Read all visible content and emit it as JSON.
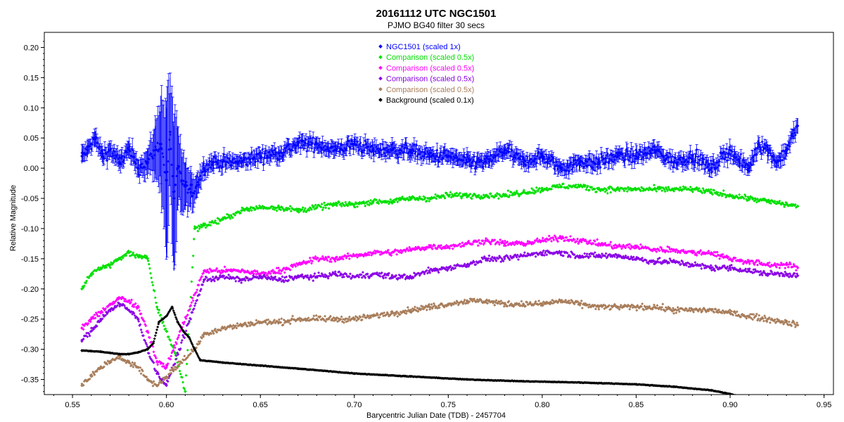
{
  "chart_data": {
    "type": "scatter",
    "title": "20161112 UTC  NGC1501",
    "subtitle": "PJMO    BG40 filter    30 secs",
    "xlabel": "Barycentric Julian Date (TDB) - 2457704",
    "ylabel": "Relative Magnitude",
    "xlim": [
      0.535,
      0.955
    ],
    "ylim": [
      -0.375,
      0.225
    ],
    "x_ticks": [
      0.55,
      0.6,
      0.65,
      0.7,
      0.75,
      0.8,
      0.85,
      0.9,
      0.95
    ],
    "x_tick_labels": [
      "0.55",
      "0.60",
      "0.65",
      "0.70",
      "0.75",
      "0.80",
      "0.85",
      "0.90",
      "0.95"
    ],
    "y_ticks": [
      0.2,
      0.15,
      0.1,
      0.05,
      0.0,
      -0.05,
      -0.1,
      -0.15,
      -0.2,
      -0.25,
      -0.3,
      -0.35
    ],
    "y_tick_labels": [
      "0.20",
      "0.15",
      "0.10",
      "0.05",
      "0.00",
      "-0.05",
      "-0.10",
      "-0.15",
      "-0.20",
      "-0.25",
      "-0.30",
      "-0.35"
    ],
    "legend_position": "top-center",
    "series": [
      {
        "name": "NGC1501  (scaled 1x)",
        "color": "#0000ff",
        "error_bars": true,
        "x": [
          0.555,
          0.558,
          0.562,
          0.566,
          0.57,
          0.575,
          0.58,
          0.585,
          0.59,
          0.594,
          0.597,
          0.6,
          0.602,
          0.604,
          0.606,
          0.608,
          0.61,
          0.613,
          0.616,
          0.62,
          0.625,
          0.63,
          0.64,
          0.65,
          0.66,
          0.67,
          0.68,
          0.69,
          0.7,
          0.71,
          0.72,
          0.73,
          0.74,
          0.75,
          0.76,
          0.77,
          0.78,
          0.79,
          0.8,
          0.81,
          0.82,
          0.83,
          0.84,
          0.85,
          0.86,
          0.87,
          0.88,
          0.89,
          0.9,
          0.905,
          0.91,
          0.915,
          0.92,
          0.925,
          0.93,
          0.936
        ],
        "y": [
          0.02,
          0.03,
          0.05,
          0.02,
          0.03,
          0.01,
          0.03,
          0.0,
          0.01,
          0.03,
          0.04,
          -0.02,
          0.06,
          -0.05,
          0.0,
          -0.02,
          -0.03,
          -0.04,
          -0.03,
          0.0,
          0.01,
          0.01,
          0.01,
          0.02,
          0.025,
          0.04,
          0.04,
          0.03,
          0.04,
          0.03,
          0.03,
          0.03,
          0.02,
          0.02,
          0.01,
          0.01,
          0.03,
          0.01,
          0.02,
          0.0,
          0.01,
          0.01,
          0.02,
          0.02,
          0.03,
          0.01,
          0.02,
          0.0,
          0.03,
          0.01,
          0.0,
          0.04,
          0.03,
          0.01,
          0.03,
          0.07
        ],
        "err": [
          0.012,
          0.012,
          0.012,
          0.012,
          0.012,
          0.012,
          0.014,
          0.016,
          0.02,
          0.04,
          0.08,
          0.12,
          0.09,
          0.12,
          0.07,
          0.05,
          0.04,
          0.03,
          0.02,
          0.012,
          0.01,
          0.01,
          0.01,
          0.01,
          0.01,
          0.01,
          0.01,
          0.01,
          0.01,
          0.01,
          0.01,
          0.01,
          0.01,
          0.01,
          0.01,
          0.01,
          0.01,
          0.01,
          0.01,
          0.01,
          0.01,
          0.01,
          0.01,
          0.01,
          0.01,
          0.01,
          0.01,
          0.01,
          0.01,
          0.01,
          0.01,
          0.01,
          0.01,
          0.01,
          0.01,
          0.012
        ]
      },
      {
        "name": "Comparison  (scaled 0.5x)",
        "color": "#00e000",
        "x": [
          0.555,
          0.56,
          0.565,
          0.57,
          0.575,
          0.58,
          0.585,
          0.59,
          0.595,
          0.6,
          0.605,
          0.61,
          0.615,
          0.62,
          0.63,
          0.64,
          0.65,
          0.66,
          0.67,
          0.68,
          0.69,
          0.7,
          0.71,
          0.72,
          0.73,
          0.74,
          0.75,
          0.76,
          0.77,
          0.78,
          0.79,
          0.8,
          0.81,
          0.82,
          0.83,
          0.84,
          0.85,
          0.86,
          0.87,
          0.88,
          0.89,
          0.9,
          0.91,
          0.92,
          0.93,
          0.936
        ],
        "y": [
          -0.2,
          -0.175,
          -0.165,
          -0.16,
          -0.15,
          -0.14,
          -0.145,
          -0.15,
          -0.23,
          -0.27,
          -0.31,
          -0.37,
          -0.1,
          -0.095,
          -0.085,
          -0.07,
          -0.065,
          -0.065,
          -0.07,
          -0.065,
          -0.06,
          -0.06,
          -0.055,
          -0.055,
          -0.05,
          -0.05,
          -0.045,
          -0.045,
          -0.045,
          -0.045,
          -0.04,
          -0.035,
          -0.03,
          -0.03,
          -0.035,
          -0.035,
          -0.035,
          -0.035,
          -0.035,
          -0.035,
          -0.04,
          -0.045,
          -0.05,
          -0.055,
          -0.06,
          -0.063
        ]
      },
      {
        "name": "Comparison  (scaled 0.5x)",
        "color": "#ff00ff",
        "x": [
          0.555,
          0.56,
          0.565,
          0.57,
          0.575,
          0.58,
          0.585,
          0.59,
          0.595,
          0.6,
          0.62,
          0.63,
          0.64,
          0.65,
          0.66,
          0.67,
          0.68,
          0.69,
          0.7,
          0.71,
          0.72,
          0.73,
          0.74,
          0.75,
          0.76,
          0.77,
          0.78,
          0.79,
          0.8,
          0.81,
          0.82,
          0.83,
          0.84,
          0.85,
          0.86,
          0.87,
          0.88,
          0.89,
          0.9,
          0.91,
          0.92,
          0.93,
          0.936
        ],
        "y": [
          -0.265,
          -0.25,
          -0.24,
          -0.225,
          -0.215,
          -0.22,
          -0.23,
          -0.27,
          -0.32,
          -0.33,
          -0.17,
          -0.17,
          -0.17,
          -0.175,
          -0.17,
          -0.16,
          -0.15,
          -0.15,
          -0.145,
          -0.14,
          -0.14,
          -0.135,
          -0.13,
          -0.13,
          -0.125,
          -0.12,
          -0.125,
          -0.125,
          -0.12,
          -0.115,
          -0.12,
          -0.125,
          -0.13,
          -0.13,
          -0.135,
          -0.135,
          -0.14,
          -0.14,
          -0.15,
          -0.155,
          -0.16,
          -0.16,
          -0.165
        ]
      },
      {
        "name": "Comparison  (scaled 0.5x)",
        "color": "#8a00e6",
        "x": [
          0.555,
          0.56,
          0.565,
          0.57,
          0.575,
          0.58,
          0.585,
          0.59,
          0.595,
          0.6,
          0.62,
          0.63,
          0.64,
          0.65,
          0.66,
          0.67,
          0.68,
          0.69,
          0.7,
          0.71,
          0.72,
          0.73,
          0.74,
          0.75,
          0.76,
          0.77,
          0.78,
          0.79,
          0.8,
          0.81,
          0.82,
          0.83,
          0.84,
          0.85,
          0.86,
          0.87,
          0.88,
          0.89,
          0.9,
          0.91,
          0.92,
          0.93,
          0.936
        ],
        "y": [
          -0.285,
          -0.27,
          -0.25,
          -0.235,
          -0.225,
          -0.235,
          -0.25,
          -0.3,
          -0.34,
          -0.36,
          -0.185,
          -0.18,
          -0.185,
          -0.18,
          -0.185,
          -0.18,
          -0.18,
          -0.175,
          -0.18,
          -0.175,
          -0.18,
          -0.18,
          -0.17,
          -0.165,
          -0.16,
          -0.15,
          -0.15,
          -0.145,
          -0.14,
          -0.14,
          -0.145,
          -0.145,
          -0.145,
          -0.15,
          -0.155,
          -0.155,
          -0.16,
          -0.165,
          -0.165,
          -0.17,
          -0.175,
          -0.175,
          -0.178
        ]
      },
      {
        "name": "Comparison  (scaled 0.5x)",
        "color": "#a87d5a",
        "x": [
          0.555,
          0.56,
          0.565,
          0.57,
          0.575,
          0.58,
          0.585,
          0.59,
          0.595,
          0.615,
          0.62,
          0.63,
          0.64,
          0.65,
          0.66,
          0.67,
          0.68,
          0.69,
          0.7,
          0.71,
          0.72,
          0.73,
          0.74,
          0.75,
          0.76,
          0.77,
          0.78,
          0.79,
          0.8,
          0.81,
          0.82,
          0.83,
          0.84,
          0.85,
          0.86,
          0.87,
          0.88,
          0.89,
          0.9,
          0.91,
          0.92,
          0.93,
          0.936
        ],
        "y": [
          -0.36,
          -0.345,
          -0.33,
          -0.32,
          -0.315,
          -0.32,
          -0.33,
          -0.35,
          -0.36,
          -0.3,
          -0.275,
          -0.265,
          -0.26,
          -0.255,
          -0.255,
          -0.25,
          -0.25,
          -0.25,
          -0.25,
          -0.245,
          -0.24,
          -0.235,
          -0.23,
          -0.225,
          -0.22,
          -0.22,
          -0.225,
          -0.225,
          -0.225,
          -0.22,
          -0.225,
          -0.23,
          -0.23,
          -0.23,
          -0.23,
          -0.235,
          -0.235,
          -0.235,
          -0.24,
          -0.245,
          -0.25,
          -0.255,
          -0.26
        ]
      },
      {
        "name": "Background  (scaled 0.1x)",
        "color": "#000000",
        "x": [
          0.555,
          0.56,
          0.565,
          0.57,
          0.575,
          0.58,
          0.585,
          0.59,
          0.593,
          0.596,
          0.598,
          0.6,
          0.603,
          0.606,
          0.609,
          0.612,
          0.615,
          0.618,
          0.63,
          0.65,
          0.67,
          0.7,
          0.73,
          0.76,
          0.79,
          0.82,
          0.85,
          0.87,
          0.89,
          0.9,
          0.905
        ],
        "y": [
          -0.302,
          -0.303,
          -0.304,
          -0.306,
          -0.308,
          -0.308,
          -0.305,
          -0.3,
          -0.29,
          -0.255,
          -0.25,
          -0.245,
          -0.23,
          -0.255,
          -0.27,
          -0.28,
          -0.3,
          -0.318,
          -0.322,
          -0.327,
          -0.332,
          -0.34,
          -0.345,
          -0.35,
          -0.353,
          -0.355,
          -0.358,
          -0.362,
          -0.368,
          -0.374,
          -0.378
        ]
      }
    ]
  }
}
